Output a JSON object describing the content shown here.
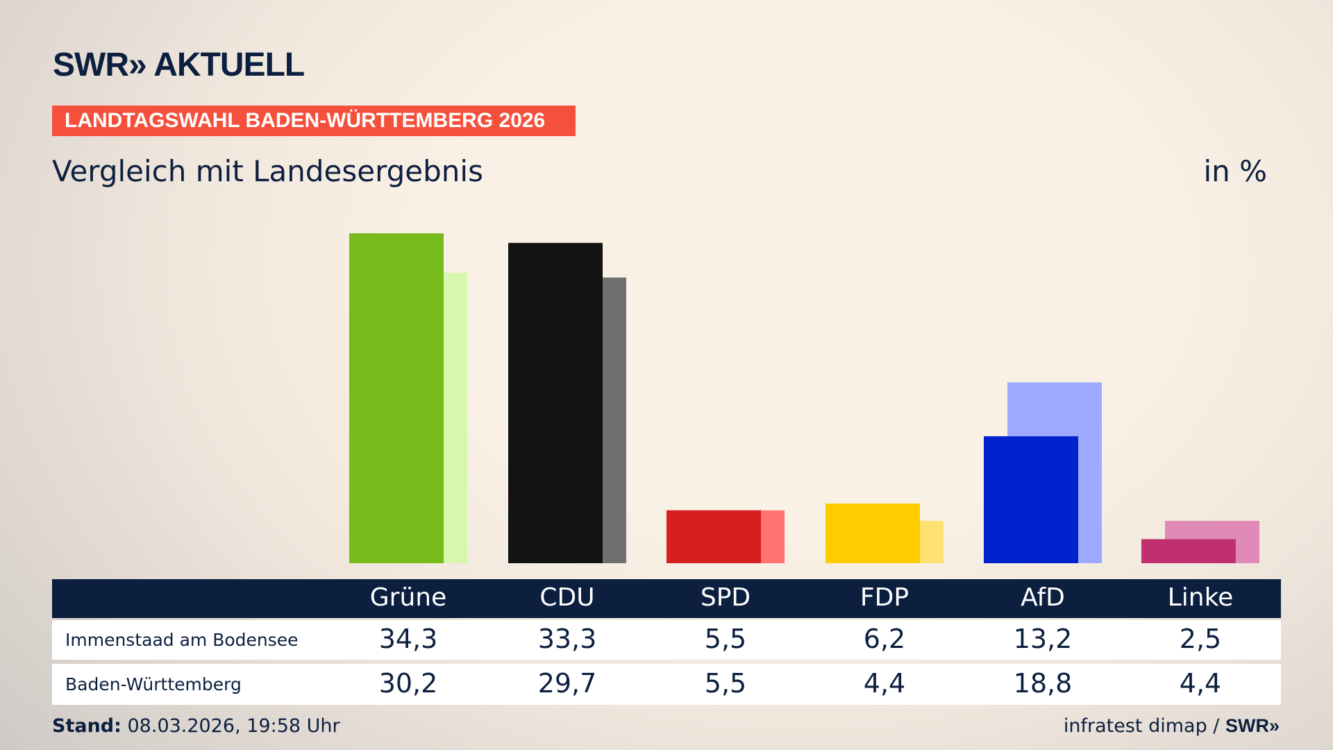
{
  "logo": "SWR» AKTUELL",
  "banner": "LANDTAGSWAHL BADEN-WÜRTTEMBERG 2026",
  "subtitle": "Vergleich mit Landesergebnis",
  "unit": "in %",
  "footer": {
    "stand_label": "Stand:",
    "stand_value": " 08.03.2026, 19:58 Uhr",
    "source": "infratest dimap / ",
    "source_logo": "SWR»"
  },
  "chart_data": {
    "type": "bar",
    "categories": [
      "Grüne",
      "CDU",
      "SPD",
      "FDP",
      "AfD",
      "Linke"
    ],
    "series": [
      {
        "name": "Immenstaad am Bodensee",
        "values": [
          34.3,
          33.3,
          5.5,
          6.2,
          13.2,
          2.5
        ],
        "labels": [
          "34,3",
          "33,3",
          "5,5",
          "6,2",
          "13,2",
          "2,5"
        ]
      },
      {
        "name": "Baden-Württemberg",
        "values": [
          30.2,
          29.7,
          5.5,
          4.4,
          18.8,
          4.4
        ],
        "labels": [
          "30,2",
          "29,7",
          "5,5",
          "4,4",
          "18,8",
          "4,4"
        ]
      }
    ],
    "colors": [
      "#78bc1c",
      "#131313",
      "#d71f1f",
      "#ffcc00",
      "#0022cc",
      "#c03070"
    ],
    "colors_state": [
      "#d8f7ae",
      "#707070",
      "#ff7373",
      "#ffe173",
      "#9daaff",
      "#e08ab8"
    ],
    "ylim": [
      0,
      35
    ],
    "grid": false
  }
}
